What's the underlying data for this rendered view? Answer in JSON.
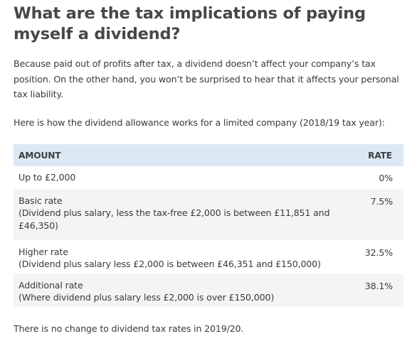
{
  "heading": "What are the tax implications of paying myself a dividend?",
  "intro": "Because paid out of profits after tax, a dividend doesn’t affect your company’s tax position. On the other hand, you won’t be surprised to hear that it affects your personal tax liability.",
  "lead": "Here is how the dividend allowance works for a limited company (2018/19 tax year):",
  "table": {
    "headers": {
      "amount": "AMOUNT",
      "rate": "RATE"
    },
    "header_bg": "#dce9f5",
    "rows": [
      {
        "amount": "Up to £2,000",
        "note": "",
        "rate": "0%"
      },
      {
        "amount": "Basic rate",
        "note": "(Dividend plus salary, less the tax-free £2,000 is between £11,851 and £46,350)",
        "rate": "7.5%"
      },
      {
        "amount": "Higher rate",
        "note": "(Dividend plus salary less £2,000 is between £46,351 and £150,000)",
        "rate": "32.5%"
      },
      {
        "amount": "Additional rate",
        "note": "(Where dividend plus salary less £2,000 is over £150,000)",
        "rate": "38.1%"
      }
    ]
  },
  "footer": "There is no change to dividend tax rates in 2019/20."
}
